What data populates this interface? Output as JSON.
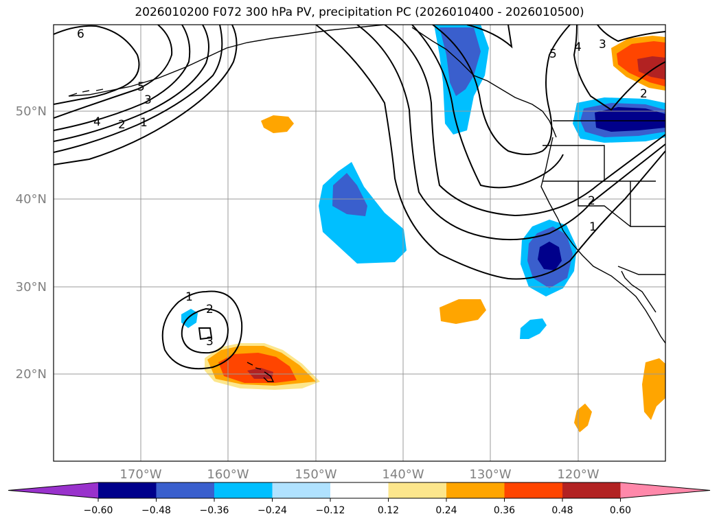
{
  "title": "2026010200 F072 300 hPa PV, precipitation PC (2026010400 - 2026010500)",
  "map": {
    "lat_labels": [
      "50°N",
      "40°N",
      "30°N",
      "20°N"
    ],
    "lon_labels": [
      "170°W",
      "160°W",
      "150°W",
      "140°W",
      "130°W",
      "120°W"
    ],
    "pv_contour_levels": [
      "6",
      "5",
      "4",
      "3",
      "2",
      "1"
    ]
  },
  "colorbar": {
    "tick_labels": [
      "−0.60",
      "−0.48",
      "−0.36",
      "−0.24",
      "−0.12",
      "0.12",
      "0.24",
      "0.36",
      "0.48",
      "0.60"
    ],
    "colors": [
      "#9932cc",
      "#00008b",
      "#3a5fcd",
      "#00bfff",
      "#b0e2ff",
      "#ffffff",
      "#fce68c",
      "#ffa500",
      "#ff4500",
      "#b22222",
      "#ff88aa"
    ]
  }
}
